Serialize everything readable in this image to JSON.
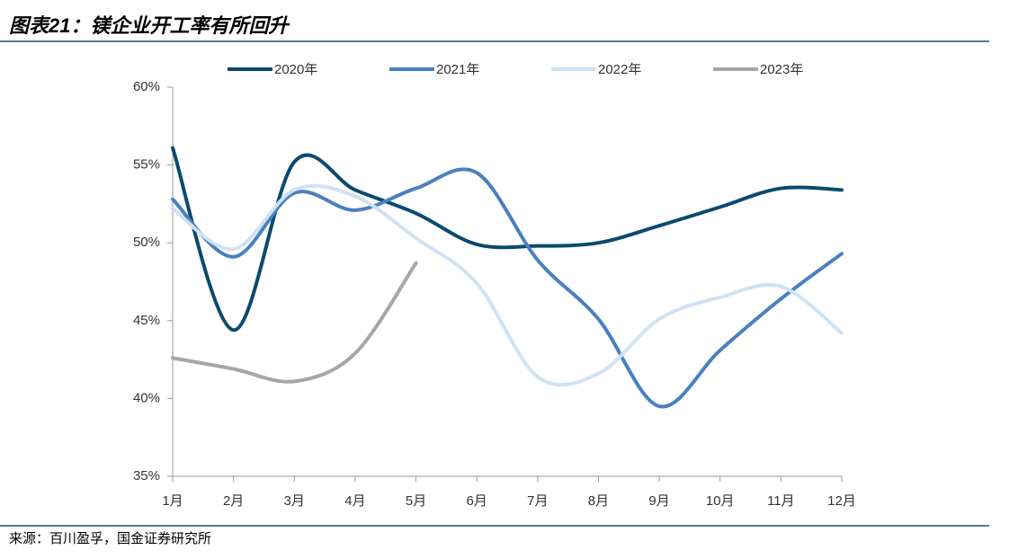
{
  "chart_data": {
    "type": "line",
    "title": "图表21：镁企业开工率有所回升",
    "source": "来源：百川盈孚，国金证券研究所",
    "categories": [
      "1月",
      "2月",
      "3月",
      "4月",
      "5月",
      "6月",
      "7月",
      "8月",
      "9月",
      "10月",
      "11月",
      "12月"
    ],
    "series": [
      {
        "name": "2020年",
        "color": "#0b4a6e",
        "values": [
          56.1,
          44.4,
          55.2,
          53.4,
          51.9,
          49.9,
          49.8,
          50.0,
          51.1,
          52.3,
          53.5,
          53.4
        ]
      },
      {
        "name": "2021年",
        "color": "#4a80c0",
        "values": [
          52.8,
          49.1,
          53.2,
          52.1,
          53.5,
          54.5,
          48.9,
          45.1,
          39.5,
          43.1,
          46.4,
          49.3
        ]
      },
      {
        "name": "2022年",
        "color": "#cfe2f3",
        "values": [
          52.2,
          49.6,
          53.4,
          53.0,
          50.3,
          47.4,
          41.4,
          41.6,
          45.1,
          46.5,
          47.2,
          44.2
        ]
      },
      {
        "name": "2023年",
        "color": "#a6a6a6",
        "values": [
          42.6,
          41.9,
          41.1,
          42.9,
          48.7,
          null,
          null,
          null,
          null,
          null,
          null,
          null
        ]
      }
    ],
    "ylim": [
      35,
      60
    ],
    "yticks": [
      {
        "value": 35,
        "label": "35%"
      },
      {
        "value": 40,
        "label": "40%"
      },
      {
        "value": 45,
        "label": "45%"
      },
      {
        "value": 50,
        "label": "50%"
      },
      {
        "value": 55,
        "label": "55%"
      },
      {
        "value": 60,
        "label": "60%"
      }
    ],
    "legend": "top"
  }
}
